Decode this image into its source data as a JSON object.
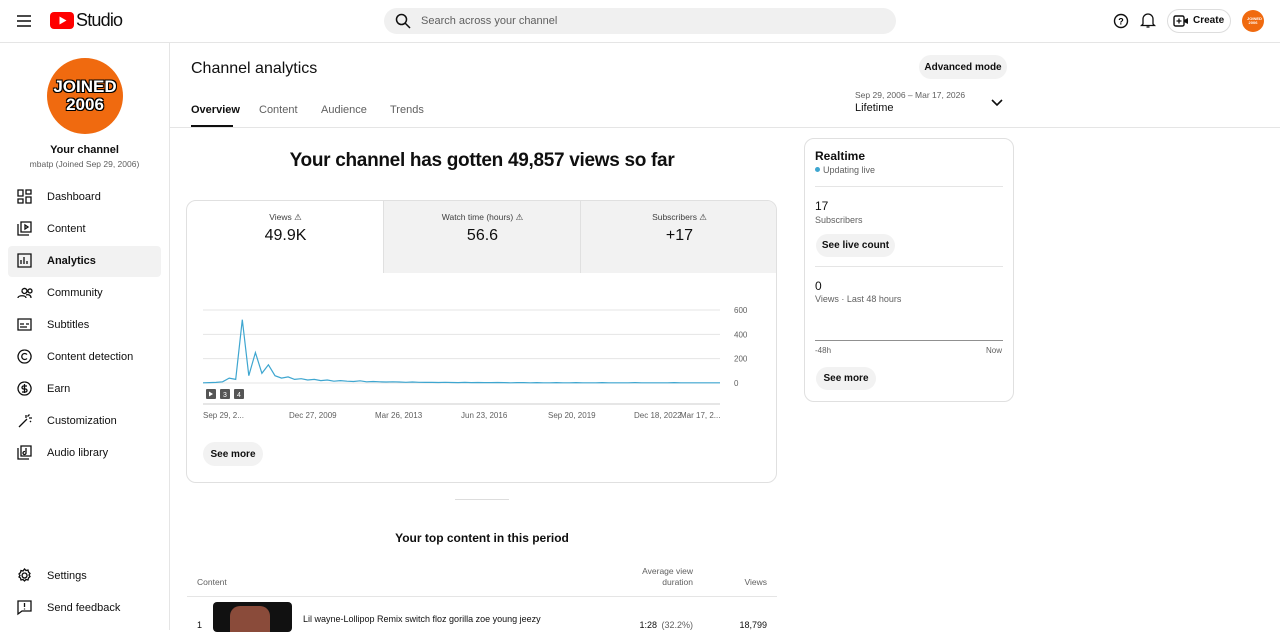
{
  "header": {
    "logo": "Studio",
    "search_placeholder": "Search across your channel",
    "create": "Create",
    "avatar": "JOINED 2006"
  },
  "sidebar": {
    "avatar_lines": [
      "JOINED",
      "2006"
    ],
    "channel_title": "Your channel",
    "channel_sub": "mbatp (Joined Sep 29, 2006)",
    "nav": [
      "Dashboard",
      "Content",
      "Analytics",
      "Community",
      "Subtitles",
      "Content detection",
      "Earn",
      "Customization",
      "Audio library"
    ],
    "bottom": [
      "Settings",
      "Send feedback"
    ]
  },
  "page": {
    "title": "Channel analytics",
    "tabs": [
      "Overview",
      "Content",
      "Audience",
      "Trends"
    ],
    "advanced": "Advanced mode",
    "date_range": "Sep 29, 2006 – Mar 17, 2026",
    "period": "Lifetime"
  },
  "overview": {
    "headline": "Your channel has gotten 49,857 views so far",
    "metrics": [
      {
        "label": "Views",
        "value": "49.9K"
      },
      {
        "label": "Watch time (hours)",
        "value": "56.6"
      },
      {
        "label": "Subscribers",
        "value": "+17"
      }
    ],
    "see_more": "See more"
  },
  "chart": {
    "type": "line",
    "color": "#3ea6d0",
    "ylim": [
      0,
      600
    ],
    "yticks": [
      0,
      200,
      400,
      600
    ],
    "x_labels": [
      "Sep 29, 2...",
      "Dec 27, 2009",
      "Mar 26, 2013",
      "Jun 23, 2016",
      "Sep 20, 2019",
      "Dec 18, 2022",
      "Mar 17, 2..."
    ],
    "annotations": [
      "3",
      "4"
    ],
    "values": [
      2,
      3,
      5,
      10,
      40,
      30,
      520,
      60,
      250,
      80,
      150,
      60,
      40,
      50,
      30,
      35,
      25,
      30,
      20,
      25,
      15,
      20,
      15,
      12,
      18,
      10,
      12,
      10,
      8,
      10,
      8,
      6,
      8,
      6,
      5,
      5,
      4,
      6,
      4,
      3,
      5,
      3,
      4,
      3,
      3,
      4,
      3,
      2,
      3,
      3,
      2,
      3,
      2,
      2,
      3,
      2,
      2,
      3,
      2,
      2,
      2,
      3,
      2,
      2,
      2,
      2,
      3,
      2,
      2,
      2,
      2,
      2,
      3,
      2,
      2,
      2,
      2,
      2,
      2,
      2
    ]
  },
  "realtime": {
    "title": "Realtime",
    "status": "Updating live",
    "subscribers_value": "17",
    "subscribers_label": "Subscribers",
    "live_button": "See live count",
    "views_value": "0",
    "views_label": "Views · Last 48 hours",
    "axis_start": "-48h",
    "axis_end": "Now",
    "see_more": "See more"
  },
  "top_content": {
    "title": "Your top content in this period",
    "columns": [
      "Content",
      "Average view duration",
      "Views"
    ],
    "rows": [
      {
        "rank": "1",
        "title": "Lil wayne-Lollipop Remix switch floz gorilla zoe young jeezy",
        "duration": "1:28",
        "percent": "(32.2%)",
        "views": "18,799"
      }
    ]
  }
}
